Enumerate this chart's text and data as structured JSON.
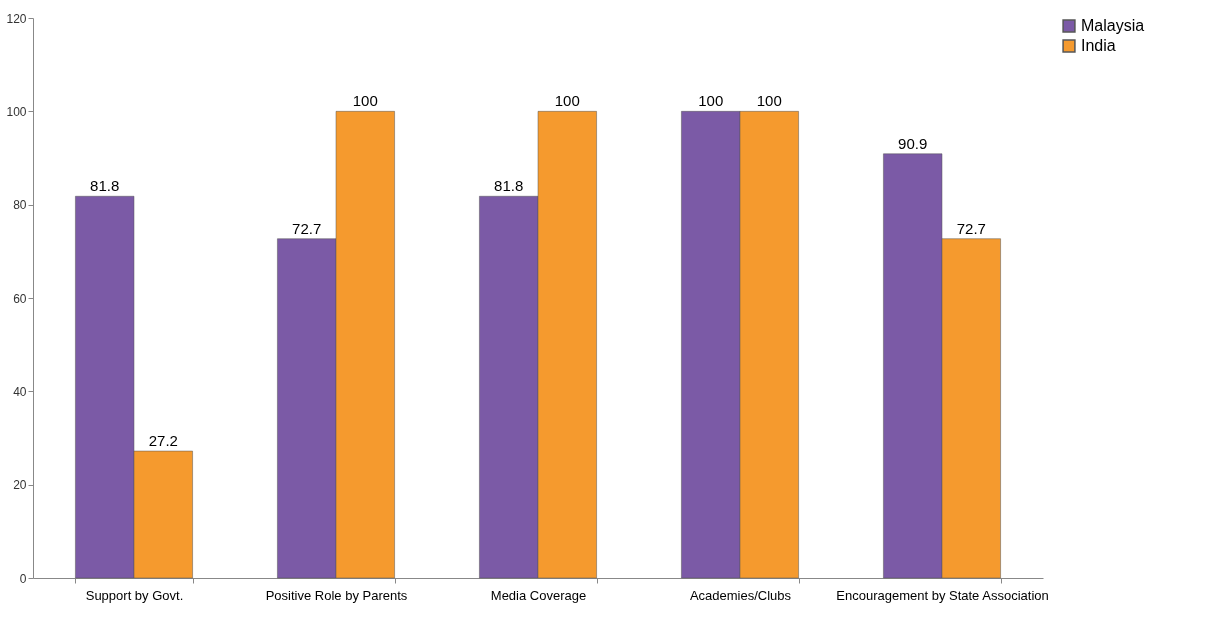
{
  "chart_data": {
    "type": "bar",
    "categories": [
      "Support by Govt.",
      "Positive Role by Parents",
      "Media Coverage",
      "Academies/Clubs",
      "Encouragement by State Association"
    ],
    "series": [
      {
        "name": "Malaysia",
        "color": "#7b5aa6",
        "values": [
          81.8,
          72.7,
          81.8,
          100,
          90.9
        ]
      },
      {
        "name": "India",
        "color": "#f59a2e",
        "values": [
          27.2,
          100,
          100,
          100,
          72.7
        ]
      }
    ],
    "ylim": [
      0,
      120
    ],
    "yticks": [
      0,
      20,
      40,
      60,
      80,
      100,
      120
    ],
    "grid": false,
    "legend": "right",
    "data_labels": true
  }
}
